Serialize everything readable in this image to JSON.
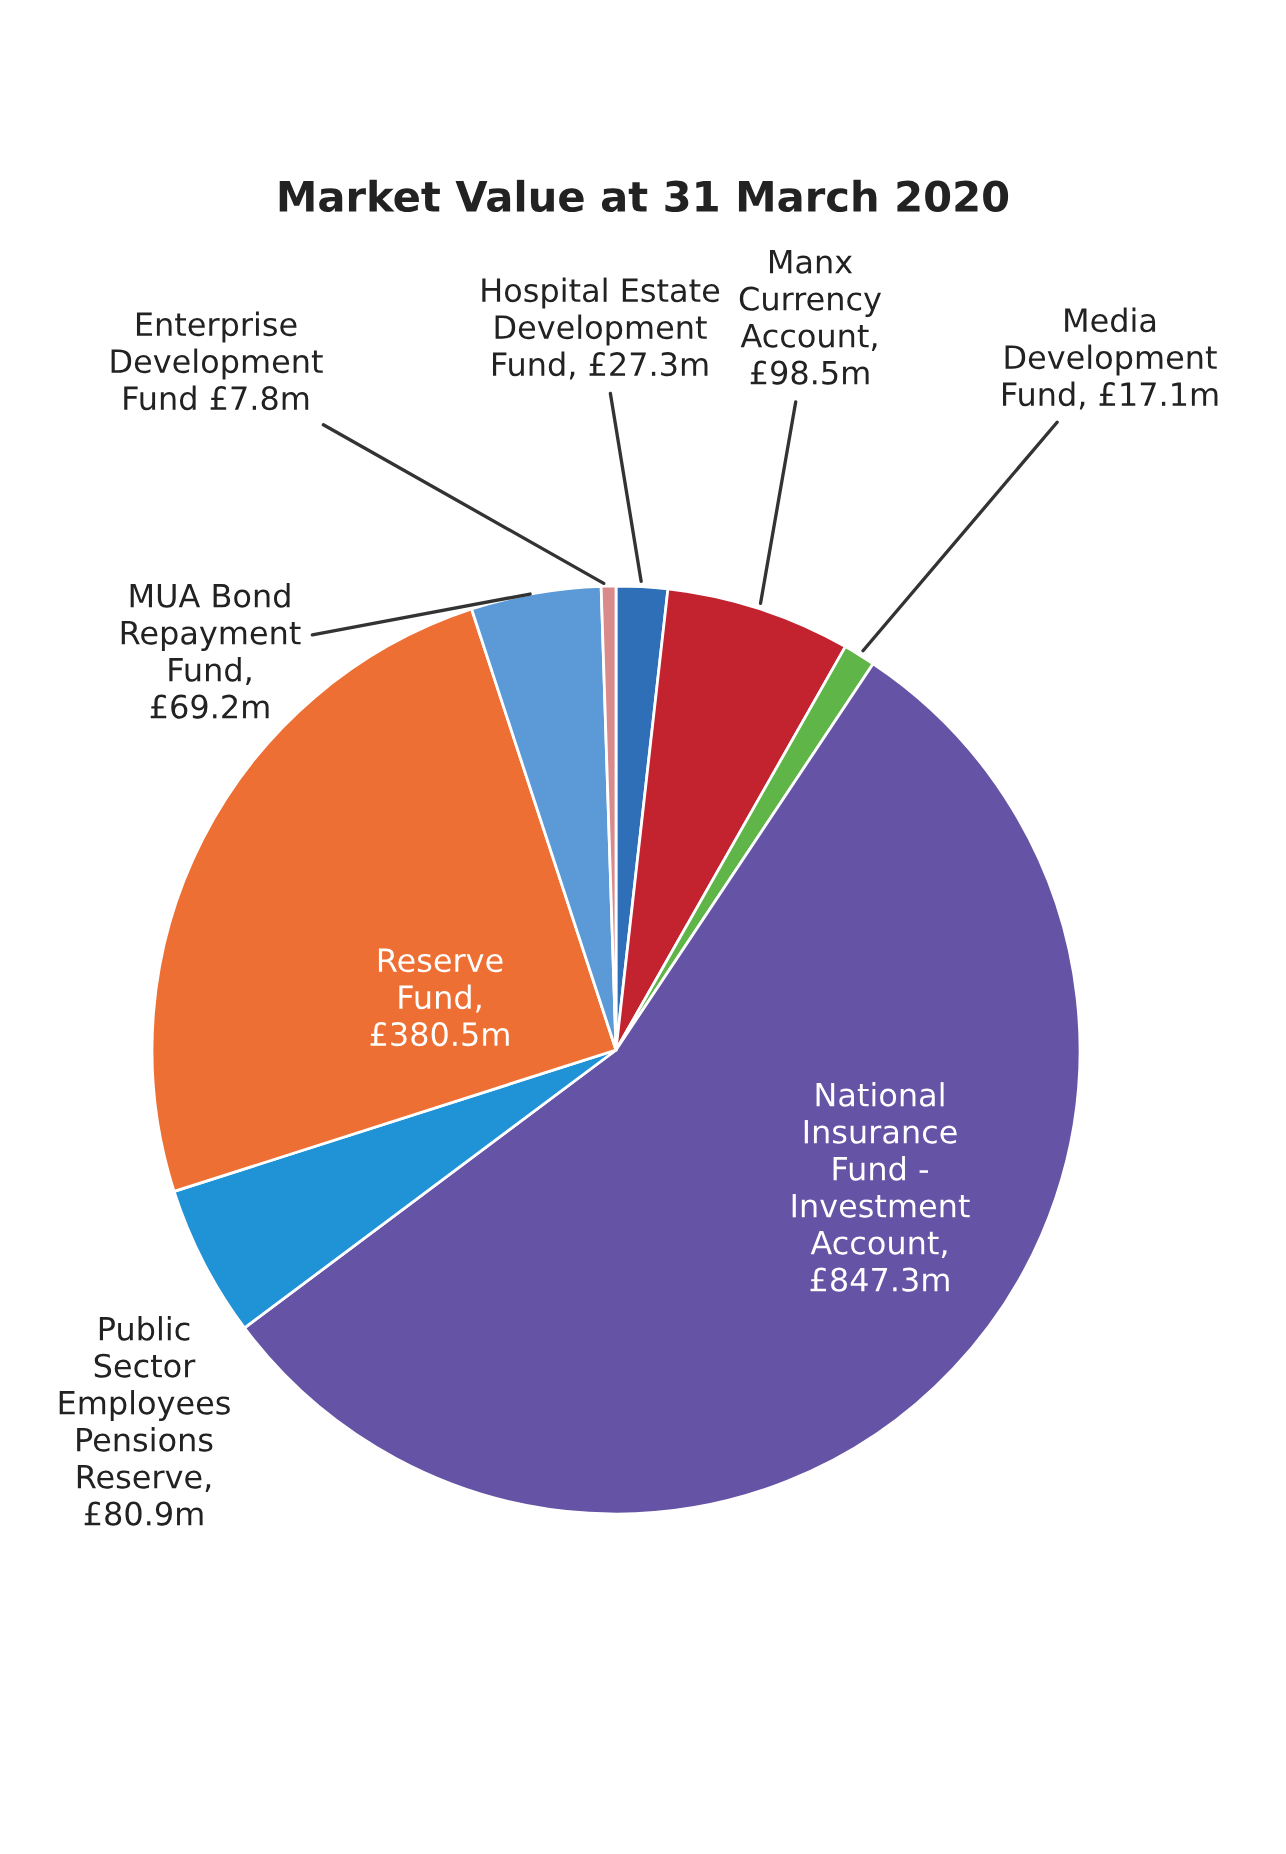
{
  "chart_data": {
    "type": "pie",
    "title": "Market Value at 31 March 2020",
    "categories": [
      "Hospital Estate\nDevelopment\nFund, £27.3m",
      "Manx\nCurrency\nAccount,\n£98.5m",
      "Media\nDevelopment\nFund, £17.1m",
      "National\nInsurance\nFund -\nInvestment\nAccount,\n£847.3m",
      "Public\nSector\nEmployees\nPensions\nReserve,\n£80.9m",
      "Reserve\nFund,\n£380.5m",
      "MUA Bond\nRepayment\nFund,\n£69.2m",
      "Enterprise\nDevelopment\nFund £7.8m"
    ],
    "values": [
      27.3,
      98.5,
      17.1,
      847.3,
      80.9,
      380.5,
      69.2,
      7.8
    ],
    "colors": [
      "#2e6fb7",
      "#c3222f",
      "#5fb548",
      "#6553a6",
      "#1f93d6",
      "#ee6f33",
      "#5b9ad6",
      "#d98a8a"
    ],
    "legend": false
  }
}
